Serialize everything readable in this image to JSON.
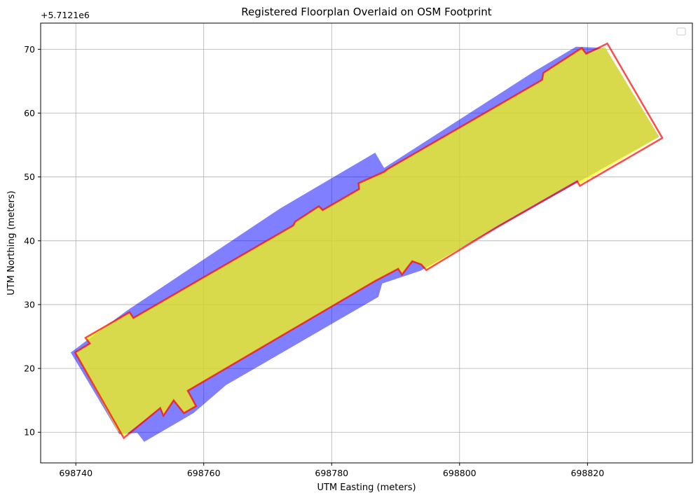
{
  "chart_data": {
    "type": "polygon",
    "title": "Registered Floorplan Overlaid on OSM Footprint",
    "x_label": "UTM Easting (meters)",
    "y_label": "UTM Northing (meters)",
    "y_offset_label": "+5.7121e6",
    "xlim": [
      698734.5,
      698836.4
    ],
    "ylim": [
      5.2,
      74.1
    ],
    "xticks": [
      698740,
      698760,
      698780,
      698800,
      698820
    ],
    "yticks": [
      10,
      20,
      30,
      40,
      50,
      60,
      70
    ],
    "grid": true,
    "legend": "upper right",
    "series": [
      {
        "color": "#0000ff",
        "opacity": 0.5,
        "fill": true,
        "x": [
          698739.2,
          698747.9,
          698772.0,
          698786.8,
          698788.2,
          698811.8,
          698818.2,
          698822.8,
          698831.2,
          698793.9,
          698787.9,
          698787.3,
          698763.5,
          698758.4,
          698750.7,
          698749.6,
          698746.8
        ],
        "y": [
          22.5,
          29.0,
          45.1,
          53.8,
          51.4,
          66.6,
          70.4,
          70.2,
          56.3,
          35.3,
          33.3,
          31.2,
          17.4,
          13.0,
          8.5,
          9.9,
          9.7
        ]
      },
      {
        "color": "#ffff00",
        "opacity": 0.7,
        "fill": true,
        "x": [
          698739.9,
          698742.2,
          698741.5,
          698748.4,
          698749.0,
          698774.0,
          698774.3,
          698778.0,
          698778.6,
          698784.3,
          698784.2,
          698788.2,
          698788.7,
          698812.9,
          698813.1,
          698819.1,
          698819.8,
          698822.7,
          698831.2,
          698818.8,
          698818.4,
          698806.0,
          698794.8,
          698794.0,
          698792.6,
          698791.0,
          698790.4,
          698786.8,
          698757.5,
          698758.8,
          698756.9,
          698755.3,
          698753.7,
          698753.2,
          698747.5,
          698746.5
        ],
        "y": [
          22.5,
          23.9,
          24.8,
          28.8,
          27.9,
          42.4,
          43.0,
          45.4,
          44.8,
          48.1,
          49.0,
          50.8,
          51.2,
          65.2,
          66.3,
          70.2,
          69.3,
          70.4,
          56.3,
          48.9,
          49.5,
          42.4,
          35.6,
          36.3,
          36.8,
          34.7,
          35.6,
          33.7,
          16.5,
          14.1,
          13.0,
          15.0,
          12.6,
          13.8,
          9.4,
          10.3
        ]
      },
      {
        "color": "#ff0000",
        "opacity": 0.7,
        "fill": false,
        "x": [
          698739.9,
          698742.2,
          698741.5,
          698748.4,
          698749.0,
          698774.0,
          698774.3,
          698778.0,
          698778.6,
          698784.3,
          698784.2,
          698788.2,
          698788.7,
          698812.9,
          698813.1,
          698819.1,
          698819.8,
          698823.1,
          698831.7,
          698818.8,
          698818.4,
          698806.0,
          698794.8,
          698794.0,
          698792.6,
          698791.0,
          698790.4,
          698786.8,
          698757.5,
          698758.8,
          698756.9,
          698755.3,
          698753.7,
          698753.2,
          698747.5
        ],
        "y": [
          22.5,
          23.9,
          24.8,
          28.8,
          27.9,
          42.4,
          43.0,
          45.4,
          44.8,
          48.1,
          49.0,
          50.8,
          51.2,
          65.2,
          66.3,
          70.2,
          69.3,
          70.9,
          56.1,
          48.6,
          49.3,
          42.2,
          35.4,
          36.3,
          36.8,
          34.7,
          35.6,
          33.7,
          16.5,
          14.1,
          13.0,
          15.0,
          12.6,
          13.8,
          9.1
        ]
      }
    ]
  }
}
